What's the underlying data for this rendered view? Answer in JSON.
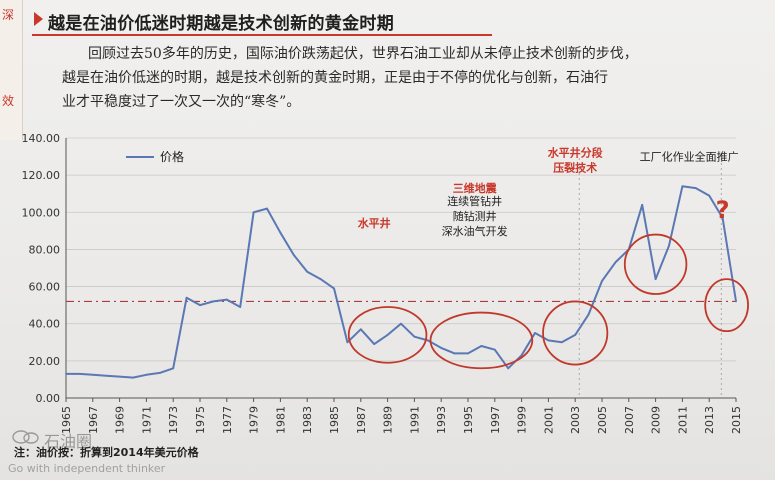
{
  "margin_marks": [
    "深",
    "效"
  ],
  "heading": "越是在油价低迷时期越是技术创新的黄金时期",
  "paragraph_lines": [
    "回顾过去50多年的历史，国际油价跌荡起伏，世界石油工业却从未停止技术创新的步伐，",
    "越是在油价低迷的时期，越是技术创新的黄金时期，正是由于不停的优化与创新，石油行",
    "业才平稳度过了一次又一次的“寒冬”。"
  ],
  "footer_note": "注：油价按：折算到2014年美元价格",
  "watermark": {
    "name": "石油圈",
    "sub": "Go with independent thinker"
  },
  "colors": {
    "series": "#5a78b4",
    "reference_line": "#b03a3a",
    "annotation": "#c9382b",
    "circle": "#c0392b",
    "grid": "#c8c8c8"
  },
  "chart_data": {
    "type": "line",
    "legend": "价格",
    "legend_position": "top-left",
    "grid": true,
    "ylim": [
      0,
      140
    ],
    "yticks": [
      "0.00",
      "20.00",
      "40.00",
      "60.00",
      "80.00",
      "100.00",
      "120.00",
      "140.00"
    ],
    "xlim": [
      1965,
      2015
    ],
    "xticks": [
      "1965",
      "1967",
      "1969",
      "1971",
      "1973",
      "1975",
      "1977",
      "1979",
      "1981",
      "1983",
      "1985",
      "1987",
      "1989",
      "1991",
      "1993",
      "1995",
      "1997",
      "1999",
      "2001",
      "2003",
      "2005",
      "2007",
      "2009",
      "2011",
      "2013",
      "2015"
    ],
    "series": [
      {
        "name": "价格",
        "x": [
          1965,
          1966,
          1967,
          1968,
          1969,
          1970,
          1971,
          1972,
          1973,
          1974,
          1975,
          1976,
          1977,
          1978,
          1979,
          1980,
          1981,
          1982,
          1983,
          1984,
          1985,
          1986,
          1987,
          1988,
          1989,
          1990,
          1991,
          1992,
          1993,
          1994,
          1995,
          1996,
          1997,
          1998,
          1999,
          2000,
          2001,
          2002,
          2003,
          2004,
          2005,
          2006,
          2007,
          2008,
          2009,
          2010,
          2011,
          2012,
          2013,
          2014,
          2015
        ],
        "y": [
          13,
          13,
          12.5,
          12,
          11.5,
          11,
          12.5,
          13.5,
          16,
          54,
          50,
          52,
          53,
          49,
          100,
          102,
          89,
          77,
          68,
          64,
          59,
          30,
          37,
          29,
          34,
          40,
          33,
          31,
          27,
          24,
          24,
          28,
          26,
          16,
          23,
          35,
          31,
          30,
          34,
          45,
          63,
          73,
          80,
          104,
          64,
          82,
          114,
          113,
          109,
          97,
          52
        ]
      }
    ],
    "reference_line": {
      "y": 52,
      "style": "dash-dot"
    },
    "annotations": [
      {
        "x": 1988,
        "y": 92,
        "lines": [
          "水平井"
        ],
        "style": "red"
      },
      {
        "x": 1995.5,
        "y": 111,
        "lines": [
          "三维地震"
        ],
        "style": "red"
      },
      {
        "x": 1995.5,
        "y": 104,
        "lines": [
          "连续管钻井",
          "随钻测井",
          "深水油气开发"
        ],
        "style": "dark"
      },
      {
        "x": 2003,
        "y": 130,
        "lines": [
          "水平井分段",
          "压裂技术"
        ],
        "style": "red"
      },
      {
        "x": 2011.5,
        "y": 128,
        "lines": [
          "工厂化作业全面推广"
        ],
        "style": "dark"
      },
      {
        "x": 2014,
        "y": 97,
        "lines": [
          "?"
        ],
        "style": "question"
      }
    ],
    "circles": [
      {
        "cx": 1989,
        "cy": 34,
        "rx": 2.9,
        "ry": 15
      },
      {
        "cx": 1996,
        "cy": 31,
        "rx": 3.8,
        "ry": 15
      },
      {
        "cx": 2003,
        "cy": 35,
        "rx": 2.4,
        "ry": 17
      },
      {
        "cx": 2009,
        "cy": 72,
        "rx": 2.3,
        "ry": 16
      },
      {
        "cx": 2014.3,
        "cy": 50,
        "rx": 1.6,
        "ry": 14
      }
    ],
    "vertical_markers": [
      2003.3,
      2013.9
    ]
  }
}
